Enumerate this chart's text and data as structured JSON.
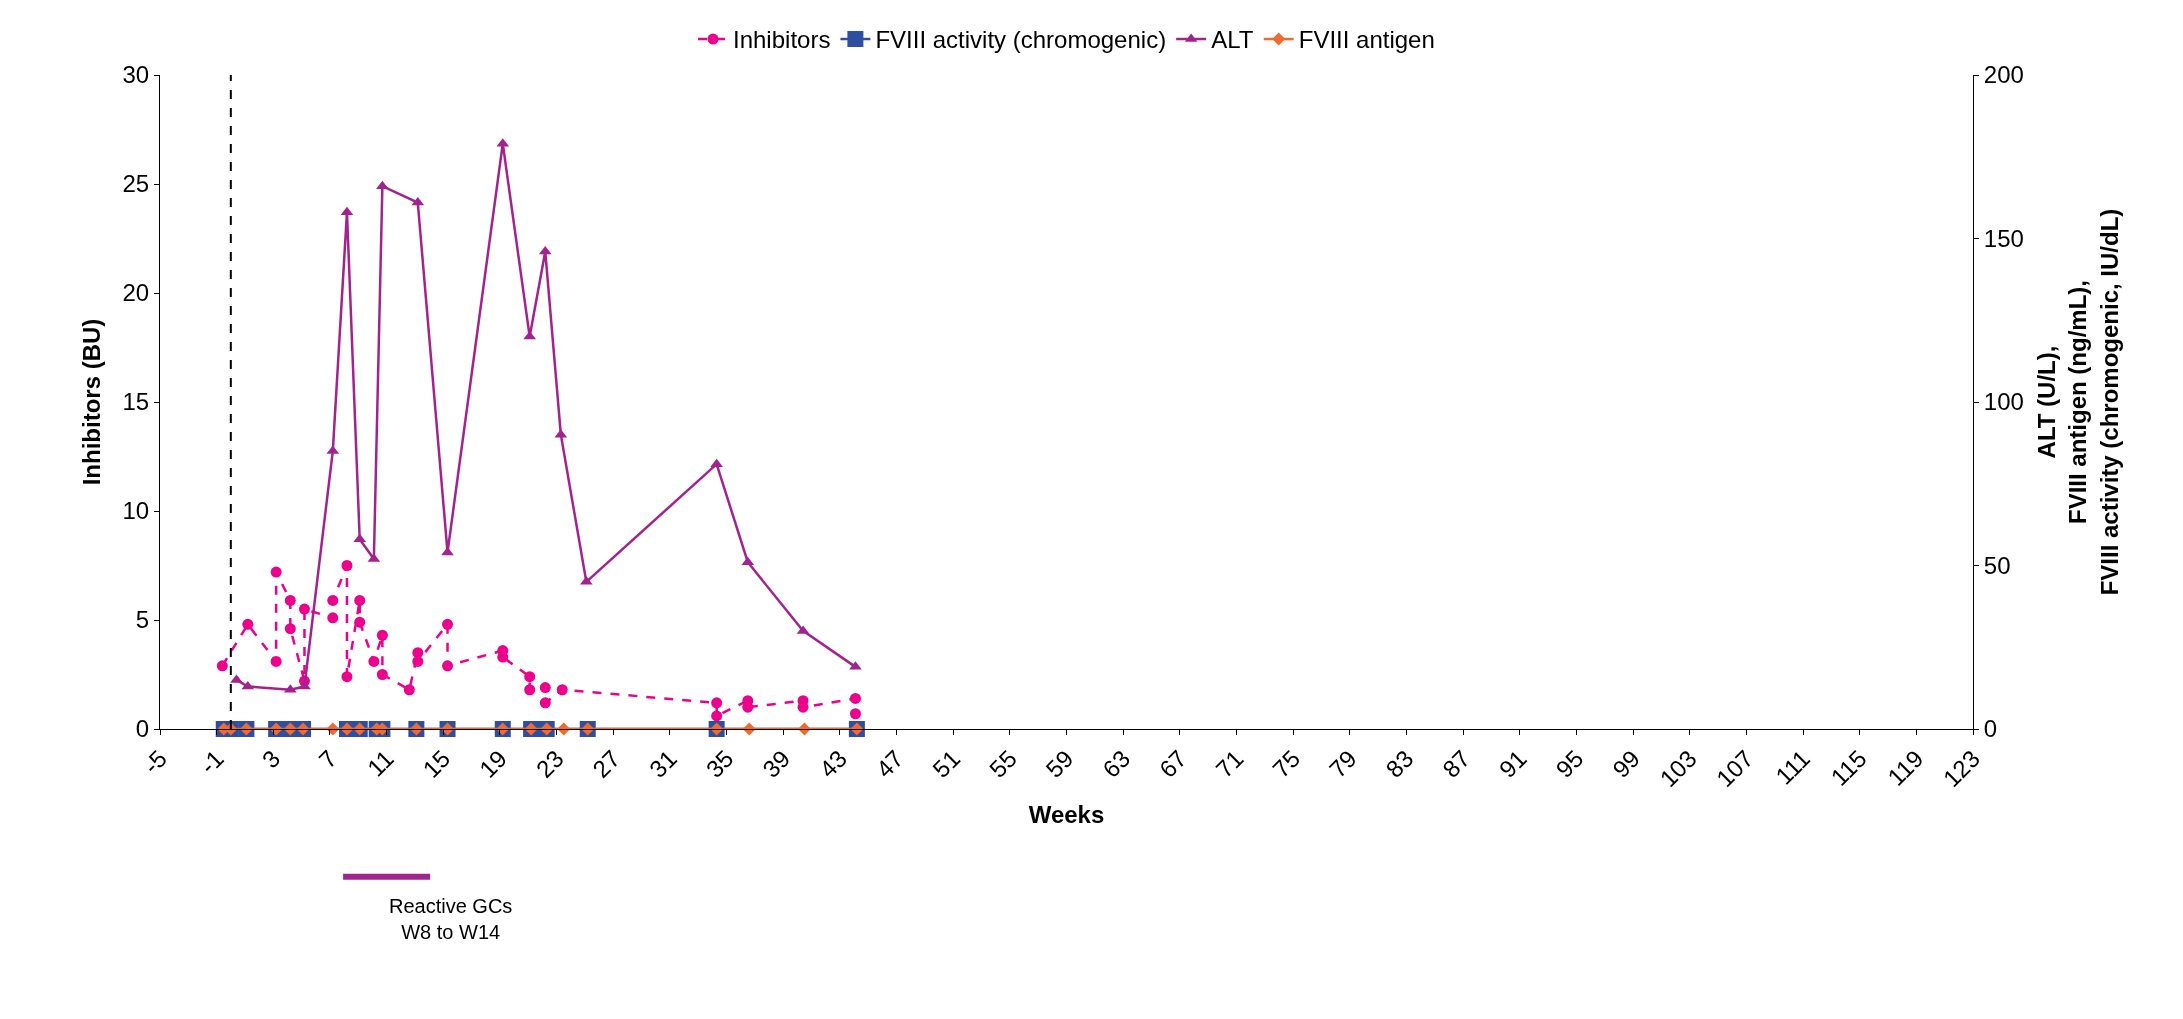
{
  "chart_data": {
    "type": "line",
    "xlabel": "Weeks",
    "ylabel": "Inhibitors (BU)",
    "y2label": "ALT (U/L),\nFVIII antigen (ng/mL),\nFVIII activity (chromogenic, IU/dL)",
    "xlim": [
      -5,
      123
    ],
    "xticks": [
      -5,
      -1,
      3,
      7,
      11,
      15,
      19,
      23,
      27,
      31,
      35,
      39,
      43,
      47,
      51,
      55,
      59,
      63,
      67,
      71,
      75,
      79,
      83,
      87,
      91,
      95,
      99,
      103,
      107,
      111,
      115,
      119,
      123
    ],
    "ylim": [
      0,
      30
    ],
    "yticks": [
      0,
      5,
      10,
      15,
      20,
      25,
      30
    ],
    "y2lim": [
      0,
      200
    ],
    "y2ticks": [
      0,
      50,
      100,
      150,
      200
    ],
    "legend": "top",
    "series": [
      {
        "name": "Inhibitors",
        "color": "#ec008c",
        "marker": "circle",
        "line_style": "dashed",
        "x": [
          -0.6,
          1.2,
          3.2,
          3.2,
          4.2,
          4.2,
          5.2,
          5.2,
          7.2,
          7.2,
          8.2,
          8.2,
          9.1,
          9.1,
          10.1,
          10.7,
          10.7,
          12.6,
          13.2,
          13.2,
          15.3,
          15.3,
          19.2,
          19.2,
          21.1,
          21.1,
          22.2,
          22.2,
          23.4,
          34.3,
          34.3,
          36.5,
          36.5,
          40.4,
          40.4,
          44.1,
          44.1
        ],
        "values": [
          2.9,
          4.8,
          3.1,
          7.2,
          5.9,
          4.6,
          2.2,
          5.5,
          5.1,
          5.9,
          7.5,
          2.4,
          5.9,
          4.9,
          3.1,
          4.3,
          2.5,
          1.8,
          3.5,
          3.1,
          4.8,
          2.9,
          3.6,
          3.3,
          2.4,
          1.8,
          1.9,
          1.2,
          1.8,
          1.2,
          0.6,
          1.3,
          1.0,
          1.3,
          1.0,
          1.4,
          0.7
        ]
      },
      {
        "name": "FVIII activity (chromogenic)",
        "color": "#2e4fa0",
        "marker": "square",
        "line_style": "solid",
        "axis": "y2",
        "x": [
          -0.5,
          0,
          1.1,
          3.2,
          4.2,
          5.1,
          8.2,
          9.1,
          10.3,
          10.7,
          13.1,
          15.3,
          19.2,
          21.2,
          22.3,
          25.2,
          34.3,
          44.2
        ],
        "values": [
          0,
          0,
          0,
          0,
          0,
          0,
          0,
          0,
          0,
          0,
          0,
          0,
          0,
          0,
          0,
          0,
          0,
          0
        ]
      },
      {
        "name": "ALT",
        "color": "#a3238e",
        "marker": "triangle",
        "line_style": "solid",
        "axis": "y2",
        "x": [
          0.4,
          1.2,
          4.2,
          5.2,
          7.2,
          8.2,
          9.1,
          10.1,
          10.7,
          13.2,
          15.3,
          19.2,
          21.1,
          22.2,
          23.3,
          25.1,
          34.3,
          36.5,
          40.4,
          44.1
        ],
        "values": [
          15,
          13,
          12,
          13,
          85,
          158,
          58,
          52,
          166,
          161,
          54,
          179,
          120,
          146,
          90,
          45,
          81,
          51,
          30,
          19
        ]
      },
      {
        "name": "FVIII antigen",
        "color": "#f26a2e",
        "marker": "diamond",
        "line_style": "solid",
        "axis": "y2",
        "x": [
          -0.5,
          0,
          1.1,
          3.2,
          4.2,
          5.1,
          7.2,
          8.2,
          9.1,
          10.3,
          10.7,
          13.1,
          15.3,
          19.2,
          21.2,
          22.3,
          23.5,
          25.2,
          34.3,
          36.6,
          40.5,
          44.2
        ],
        "values": [
          0,
          0,
          0,
          0,
          0,
          0,
          0,
          0,
          0,
          0,
          0,
          0,
          0,
          0,
          0,
          0,
          0,
          0,
          0,
          0,
          0,
          0
        ]
      }
    ],
    "ref_lines": [
      {
        "axis": "x",
        "value": 0,
        "color": "#000000",
        "line_style": "dashed"
      }
    ],
    "annotations": [
      "Reactive GCs\nW8 to W14"
    ]
  }
}
